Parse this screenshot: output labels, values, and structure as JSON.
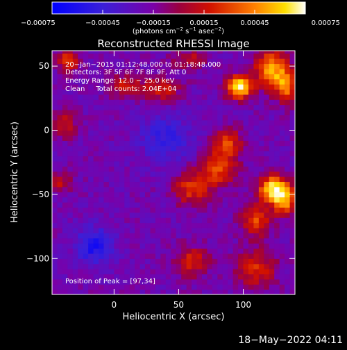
{
  "chart_data": {
    "type": "heatmap",
    "title": "Reconstructed RHESSI Image",
    "xlabel": "Heliocentric X (arcsec)",
    "ylabel": "Heliocentric Y (arcsec)",
    "xlim": [
      -48,
      140
    ],
    "ylim": [
      -128,
      62
    ],
    "x_ticks": [
      0,
      50,
      100
    ],
    "y_ticks": [
      50,
      0,
      -50,
      -100
    ],
    "x_tick_labels": [
      "0",
      "50",
      "100"
    ],
    "y_tick_labels": [
      "50",
      "0",
      "−50",
      "−100"
    ],
    "colorbar": {
      "range": [
        -0.00075,
        0.00075
      ],
      "ticks": [
        -0.00075,
        -0.00045,
        -0.00015,
        0.00015,
        0.00045,
        0.00075
      ],
      "tick_labels": [
        "−0.00075",
        "−0.00045",
        "−0.00015",
        "0.00015",
        "0.00045",
        "0.00075"
      ],
      "units_main": "(photons cm",
      "units_sup1": "−2",
      "units_mid": " s",
      "units_sup2": "−1",
      "units_end": " asec",
      "units_sup3": "−2",
      "units_close": ")"
    },
    "annotations": [
      "20−Jan−2015 01:12:48.000 to 01:18:48.000",
      "Detectors: 3F 5F 6F 7F 8F 9F, Att 0",
      "Energy Range: 12.0 − 25.0 keV",
      "Clean     Total counts: 2.04E+04"
    ],
    "peak_label": "Position of Peak = [97,34]",
    "peak": [
      97,
      34
    ],
    "background_level": -0.0002,
    "sources": [
      {
        "x": 97,
        "y": 34,
        "amp": 0.00095,
        "sx": 7,
        "sy": 6
      },
      {
        "x": 122,
        "y": 48,
        "amp": 0.0007,
        "sx": 9,
        "sy": 10
      },
      {
        "x": 133,
        "y": 34,
        "amp": 0.00055,
        "sx": 6,
        "sy": 9
      },
      {
        "x": 123,
        "y": -45,
        "amp": 0.0008,
        "sx": 8,
        "sy": 7
      },
      {
        "x": 132,
        "y": -55,
        "amp": 0.00065,
        "sx": 7,
        "sy": 8
      },
      {
        "x": 88,
        "y": -10,
        "amp": 0.00045,
        "sx": 8,
        "sy": 8
      },
      {
        "x": 80,
        "y": -30,
        "amp": 0.0005,
        "sx": 10,
        "sy": 9
      },
      {
        "x": 60,
        "y": -45,
        "amp": 0.00045,
        "sx": 10,
        "sy": 9
      },
      {
        "x": 110,
        "y": -70,
        "amp": 0.0005,
        "sx": 8,
        "sy": 9
      },
      {
        "x": 110,
        "y": -108,
        "amp": 0.0004,
        "sx": 11,
        "sy": 10
      },
      {
        "x": 60,
        "y": -102,
        "amp": 0.0004,
        "sx": 9,
        "sy": 8
      },
      {
        "x": 35,
        "y": 32,
        "amp": 0.0004,
        "sx": 11,
        "sy": 7
      },
      {
        "x": 8,
        "y": 35,
        "amp": 0.00035,
        "sx": 8,
        "sy": 6
      },
      {
        "x": -35,
        "y": 55,
        "amp": 0.00045,
        "sx": 6,
        "sy": 6
      },
      {
        "x": 58,
        "y": 56,
        "amp": 0.0003,
        "sx": 9,
        "sy": 5
      },
      {
        "x": -42,
        "y": -40,
        "amp": 0.0003,
        "sx": 6,
        "sy": 6
      },
      {
        "x": -38,
        "y": 5,
        "amp": 0.0003,
        "sx": 6,
        "sy": 8
      },
      {
        "x": -15,
        "y": -90,
        "amp": -0.0004,
        "sx": 10,
        "sy": 10
      },
      {
        "x": 40,
        "y": -5,
        "amp": -0.00025,
        "sx": 15,
        "sy": 15
      }
    ]
  },
  "footer": {
    "timestamp": "18−May−2022 04:11"
  }
}
